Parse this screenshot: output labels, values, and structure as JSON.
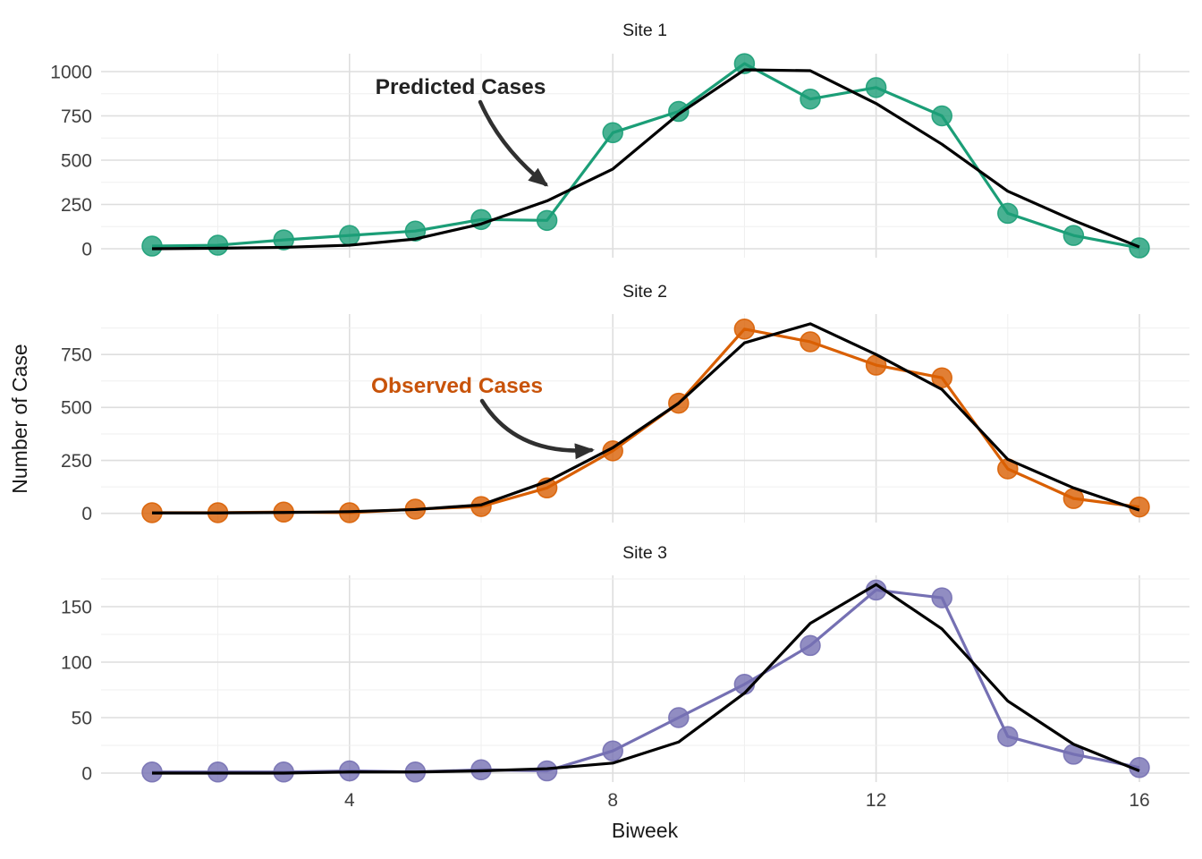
{
  "chart_data": {
    "type": "line",
    "xlabel": "Biweek",
    "ylabel": "Number of Case",
    "x": [
      1,
      2,
      3,
      4,
      5,
      6,
      7,
      8,
      9,
      10,
      11,
      12,
      13,
      14,
      15,
      16
    ],
    "x_ticks": [
      4,
      8,
      12,
      16
    ],
    "x_minor_gridlines": [
      2,
      6,
      10,
      14
    ],
    "legend_position": "none",
    "grid": "on",
    "facets": [
      {
        "title": "Site 1",
        "color": "#1B9E77",
        "y_ticks": [
          0,
          250,
          500,
          750,
          1000
        ],
        "y_minor_gridlines": [
          125,
          375,
          625,
          875
        ],
        "ylim": [
          -52,
          1097
        ],
        "series": [
          {
            "name": "Observed Cases",
            "values": [
              15,
              20,
              50,
              75,
              100,
              165,
              160,
              655,
              775,
              1045,
              845,
              910,
              750,
              200,
              75,
              5
            ]
          },
          {
            "name": "Predicted Cases",
            "values": [
              0,
              3,
              8,
              20,
              55,
              140,
              270,
              450,
              760,
              1010,
              1005,
              820,
              590,
              325,
              160,
              10
            ]
          }
        ]
      },
      {
        "title": "Site 2",
        "color": "#D95F02",
        "y_ticks": [
          0,
          250,
          500,
          750
        ],
        "y_minor_gridlines": [
          125,
          375,
          625,
          875
        ],
        "ylim": [
          -45,
          940
        ],
        "series": [
          {
            "name": "Observed Cases",
            "values": [
              3,
              3,
              6,
              3,
              20,
              32,
              120,
              295,
              520,
              870,
              810,
              700,
              640,
              210,
              70,
              30
            ]
          },
          {
            "name": "Predicted Cases",
            "values": [
              2,
              2,
              4,
              8,
              18,
              40,
              150,
              310,
              520,
              805,
              895,
              750,
              585,
              255,
              120,
              15
            ]
          }
        ]
      },
      {
        "title": "Site 3",
        "color": "#7570B3",
        "y_ticks": [
          0,
          50,
          100,
          150
        ],
        "y_minor_gridlines": [
          25,
          75,
          125,
          175
        ],
        "ylim": [
          -9,
          178
        ],
        "series": [
          {
            "name": "Observed Cases",
            "values": [
              1,
              1,
              1,
              2,
              1,
              3,
              2,
              20,
              50,
              80,
              115,
              165,
              158,
              33,
              17,
              5
            ]
          },
          {
            "name": "Predicted Cases",
            "values": [
              0,
              0,
              0,
              1,
              1,
              2,
              4,
              9,
              28,
              72,
              135,
              170,
              130,
              65,
              26,
              2
            ]
          }
        ]
      }
    ],
    "annotations": [
      {
        "text": "Predicted Cases",
        "color": "#232323",
        "panel": "Site 1"
      },
      {
        "text": "Observed Cases",
        "color": "#C85309",
        "panel": "Site 2"
      }
    ]
  },
  "styles": {
    "background": "#ffffff",
    "predicted_line_color": "#000000",
    "grid_major_color": "#DEDEDE",
    "grid_minor_color": "#EFEFEF",
    "tick_label_color": "#404040",
    "facet_title_color": "#1c1c1c",
    "axis_title_color": "#1a1a1a",
    "arrow_color": "#303030"
  }
}
